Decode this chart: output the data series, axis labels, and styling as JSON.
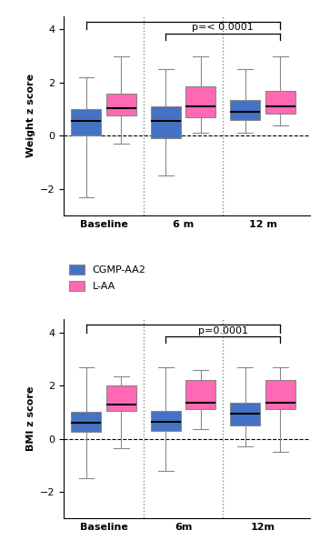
{
  "fig_width": 3.52,
  "fig_height": 5.94,
  "dpi": 100,
  "blue_color": "#4472C4",
  "pink_color": "#FF69B4",
  "background_color": "#FFFFFF",
  "legend_labels": [
    "CGMP-AA2",
    "L-AA"
  ],
  "fontsize_ticks": 8,
  "fontsize_ylabel": 8,
  "fontsize_legend": 8,
  "fontsize_pvalue": 8,
  "weight": {
    "ylabel": "Weight z score",
    "ylim": [
      -3.0,
      4.5
    ],
    "yticks": [
      -2,
      0,
      2,
      4
    ],
    "xticklabels": [
      "Baseline",
      "6 m",
      "12 m"
    ],
    "pvalue_text": "p=< 0.0001",
    "groups_order": [
      "Baseline",
      "6m",
      "12m"
    ],
    "groups": {
      "Baseline": {
        "CGMP": {
          "whislo": -2.3,
          "q1": 0.0,
          "med": 0.55,
          "q3": 1.0,
          "whishi": 2.2
        },
        "LAA": {
          "whislo": -0.3,
          "q1": 0.75,
          "med": 1.05,
          "q3": 1.6,
          "whishi": 3.0
        }
      },
      "6m": {
        "CGMP": {
          "whislo": -1.5,
          "q1": -0.1,
          "med": 0.55,
          "q3": 1.1,
          "whishi": 2.5
        },
        "LAA": {
          "whislo": 0.1,
          "q1": 0.7,
          "med": 1.1,
          "q3": 1.85,
          "whishi": 3.0
        }
      },
      "12m": {
        "CGMP": {
          "whislo": 0.1,
          "q1": 0.6,
          "med": 0.9,
          "q3": 1.35,
          "whishi": 2.5
        },
        "LAA": {
          "whislo": 0.4,
          "q1": 0.85,
          "med": 1.1,
          "q3": 1.7,
          "whishi": 3.0
        }
      }
    }
  },
  "bmi": {
    "ylabel": "BMI z score",
    "ylim": [
      -3.0,
      4.5
    ],
    "yticks": [
      -2,
      0,
      2,
      4
    ],
    "xticklabels": [
      "Baseline",
      "6m",
      "12m"
    ],
    "pvalue_text": "p=0.0001",
    "groups_order": [
      "Baseline",
      "6m",
      "12m"
    ],
    "groups": {
      "Baseline": {
        "CGMP": {
          "whislo": -1.5,
          "q1": 0.25,
          "med": 0.6,
          "q3": 1.0,
          "whishi": 2.7
        },
        "LAA": {
          "whislo": -0.35,
          "q1": 1.05,
          "med": 1.3,
          "q3": 2.0,
          "whishi": 2.35
        }
      },
      "6m": {
        "CGMP": {
          "whislo": -1.2,
          "q1": 0.3,
          "med": 0.65,
          "q3": 1.05,
          "whishi": 2.7
        },
        "LAA": {
          "whislo": 0.35,
          "q1": 1.1,
          "med": 1.35,
          "q3": 2.2,
          "whishi": 2.6
        }
      },
      "12m": {
        "CGMP": {
          "whislo": -0.3,
          "q1": 0.5,
          "med": 0.95,
          "q3": 1.35,
          "whishi": 2.7
        },
        "LAA": {
          "whislo": -0.5,
          "q1": 1.1,
          "med": 1.35,
          "q3": 2.2,
          "whishi": 2.7
        }
      }
    }
  }
}
